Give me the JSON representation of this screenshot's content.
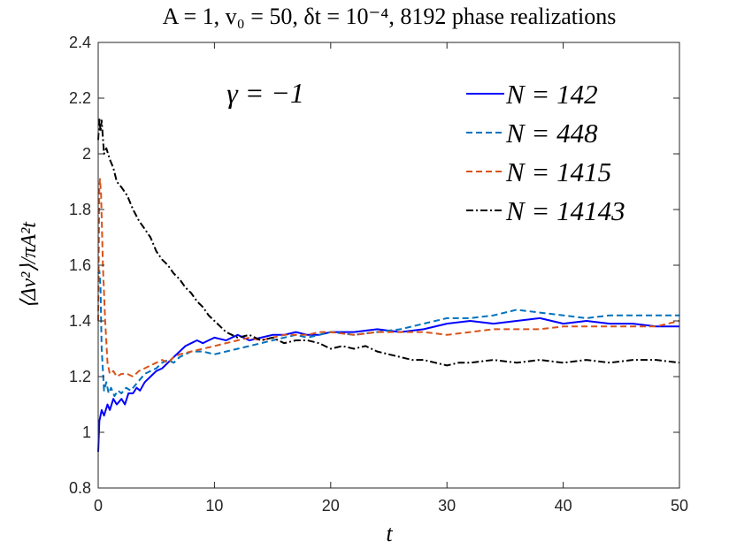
{
  "chart_data": {
    "type": "line",
    "title": "A = 1, v₀ = 50, δt = 10⁻⁴, 8192 phase realizations",
    "xlabel": "t",
    "ylabel": "⟨Δv²⟩/πA²t",
    "annotation": "γ = −1",
    "xlim": [
      0,
      50
    ],
    "ylim": [
      0.8,
      2.4
    ],
    "xticks": [
      0,
      10,
      20,
      30,
      40,
      50
    ],
    "yticks": [
      0.8,
      1,
      1.2,
      1.4,
      1.6,
      1.8,
      2,
      2.2,
      2.4
    ],
    "xtick_labels": [
      "0",
      "10",
      "20",
      "30",
      "40",
      "50"
    ],
    "ytick_labels": [
      "0.8",
      "1",
      "1.2",
      "1.4",
      "1.6",
      "1.8",
      "2",
      "2.2",
      "2.4"
    ],
    "legend_position": "top-right",
    "series": [
      {
        "name": "N = 142",
        "color": "#0000ff",
        "dash": "solid",
        "x": [
          0,
          0.1,
          0.3,
          0.5,
          0.8,
          1.0,
          1.3,
          1.6,
          2.0,
          2.3,
          2.6,
          3.0,
          3.3,
          3.6,
          4.0,
          4.5,
          5,
          5.5,
          6,
          6.5,
          7,
          7.5,
          8,
          8.5,
          9,
          9.5,
          10,
          11,
          12,
          13,
          14,
          15,
          16,
          17,
          18,
          19,
          20,
          22,
          24,
          26,
          28,
          30,
          32,
          34,
          36,
          38,
          40,
          42,
          44,
          46,
          48,
          50
        ],
        "values": [
          0.93,
          1.04,
          1.08,
          1.06,
          1.1,
          1.08,
          1.12,
          1.1,
          1.12,
          1.1,
          1.14,
          1.14,
          1.16,
          1.15,
          1.18,
          1.2,
          1.22,
          1.23,
          1.25,
          1.27,
          1.29,
          1.31,
          1.32,
          1.33,
          1.32,
          1.33,
          1.34,
          1.33,
          1.35,
          1.33,
          1.34,
          1.35,
          1.35,
          1.36,
          1.35,
          1.35,
          1.36,
          1.36,
          1.37,
          1.36,
          1.37,
          1.39,
          1.4,
          1.39,
          1.4,
          1.41,
          1.39,
          1.4,
          1.39,
          1.39,
          1.38,
          1.38
        ]
      },
      {
        "name": "N = 448",
        "color": "#0072bd",
        "dash": "dashed",
        "x": [
          0,
          0.1,
          0.2,
          0.3,
          0.5,
          0.7,
          0.9,
          1.1,
          1.4,
          1.7,
          2.0,
          2.4,
          2.8,
          3.2,
          3.6,
          4,
          4.5,
          5,
          5.5,
          6,
          6.5,
          7,
          8,
          9,
          10,
          11,
          12,
          13,
          14,
          15,
          16,
          17,
          18,
          19,
          20,
          22,
          24,
          26,
          28,
          30,
          32,
          34,
          36,
          38,
          40,
          42,
          44,
          46,
          48,
          50
        ],
        "values": [
          1.57,
          1.58,
          1.52,
          1.3,
          1.15,
          1.18,
          1.14,
          1.16,
          1.13,
          1.15,
          1.14,
          1.16,
          1.15,
          1.17,
          1.19,
          1.21,
          1.22,
          1.23,
          1.25,
          1.26,
          1.25,
          1.27,
          1.29,
          1.29,
          1.28,
          1.29,
          1.3,
          1.31,
          1.32,
          1.33,
          1.34,
          1.35,
          1.34,
          1.35,
          1.36,
          1.35,
          1.36,
          1.37,
          1.39,
          1.41,
          1.41,
          1.42,
          1.44,
          1.43,
          1.42,
          1.41,
          1.42,
          1.42,
          1.42,
          1.42
        ]
      },
      {
        "name": "N = 1415",
        "color": "#d95319",
        "dash": "dashed",
        "x": [
          0,
          0.1,
          0.15,
          0.25,
          0.4,
          0.6,
          0.8,
          1.0,
          1.3,
          1.6,
          2.0,
          2.5,
          3.0,
          3.5,
          4,
          4.5,
          5,
          5.5,
          6,
          6.5,
          7,
          8,
          9,
          10,
          11,
          12,
          13,
          14,
          15,
          16,
          17,
          18,
          19,
          20,
          22,
          24,
          26,
          28,
          30,
          32,
          34,
          36,
          38,
          40,
          42,
          44,
          46,
          48,
          50
        ],
        "values": [
          1.4,
          1.88,
          1.91,
          1.85,
          1.6,
          1.4,
          1.25,
          1.21,
          1.22,
          1.2,
          1.21,
          1.21,
          1.2,
          1.22,
          1.23,
          1.24,
          1.25,
          1.26,
          1.25,
          1.27,
          1.28,
          1.29,
          1.3,
          1.31,
          1.32,
          1.33,
          1.34,
          1.33,
          1.34,
          1.35,
          1.35,
          1.35,
          1.36,
          1.36,
          1.35,
          1.36,
          1.36,
          1.36,
          1.35,
          1.36,
          1.37,
          1.37,
          1.37,
          1.38,
          1.38,
          1.38,
          1.38,
          1.38,
          1.4
        ]
      },
      {
        "name": "N = 14143",
        "color": "#000000",
        "dash": "dashdot",
        "x": [
          0,
          0.1,
          0.2,
          0.3,
          0.5,
          0.7,
          1.0,
          1.3,
          1.6,
          2.0,
          2.5,
          3,
          3.5,
          4,
          4.5,
          5,
          5.5,
          6,
          6.5,
          7,
          7.5,
          8,
          8.5,
          9,
          9.5,
          10,
          10.5,
          11,
          11.5,
          12,
          13,
          14,
          15,
          16,
          17,
          18,
          19,
          20,
          21,
          22,
          23,
          24,
          25,
          26,
          27,
          28,
          29,
          30,
          31,
          32,
          34,
          36,
          38,
          40,
          42,
          44,
          46,
          48,
          50
        ],
        "values": [
          2.05,
          2.13,
          2.08,
          2.12,
          2.0,
          2.02,
          1.98,
          1.95,
          1.9,
          1.88,
          1.85,
          1.8,
          1.76,
          1.73,
          1.7,
          1.65,
          1.62,
          1.6,
          1.57,
          1.55,
          1.52,
          1.5,
          1.47,
          1.45,
          1.42,
          1.4,
          1.38,
          1.36,
          1.35,
          1.34,
          1.35,
          1.33,
          1.34,
          1.32,
          1.33,
          1.33,
          1.32,
          1.3,
          1.31,
          1.3,
          1.31,
          1.29,
          1.28,
          1.27,
          1.26,
          1.26,
          1.25,
          1.24,
          1.25,
          1.25,
          1.26,
          1.25,
          1.26,
          1.25,
          1.26,
          1.25,
          1.26,
          1.26,
          1.25
        ]
      }
    ]
  }
}
